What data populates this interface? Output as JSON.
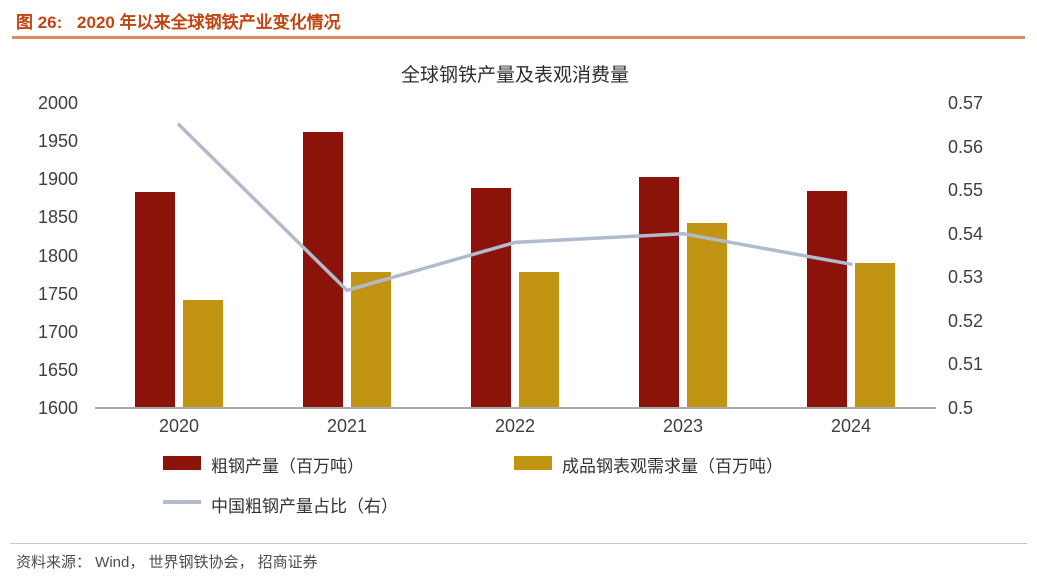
{
  "header": {
    "figure_label": "图 26:",
    "figure_title": "2020 年以来全球钢铁产业变化情况"
  },
  "chart_data": {
    "type": "bar",
    "subtype": "grouped bars with overlay line on secondary axis",
    "title": "全球钢铁产量及表观消费量",
    "categories": [
      "2020",
      "2021",
      "2022",
      "2023",
      "2024"
    ],
    "bar_series": [
      {
        "name": "粗钢产量（百万吨）",
        "color": "#8C1309",
        "axis": "left",
        "values": [
          1883,
          1962,
          1888,
          1903,
          1885
        ]
      },
      {
        "name": "成品钢表观需求量（百万吨）",
        "color": "#C29413",
        "axis": "left",
        "values": [
          1742,
          1778,
          1779,
          1843,
          1790
        ]
      }
    ],
    "line_series": [
      {
        "name": "中国粗钢产量占比（右）",
        "color": "#B0BBCE",
        "axis": "right",
        "values": [
          0.565,
          0.527,
          0.538,
          0.54,
          0.533
        ]
      }
    ],
    "left_axis": {
      "min": 1600,
      "max": 2000,
      "ticks": [
        1600,
        1650,
        1700,
        1750,
        1800,
        1850,
        1900,
        1950,
        2000
      ]
    },
    "right_axis": {
      "min": 0.5,
      "max": 0.57,
      "ticks": [
        0.5,
        0.51,
        0.52,
        0.53,
        0.54,
        0.55,
        0.56,
        0.57
      ],
      "tick_labels": [
        "0.5",
        "0.51",
        "0.52",
        "0.53",
        "0.54",
        "0.55",
        "0.56",
        "0.57"
      ]
    },
    "grid": false,
    "legend_position": "bottom"
  },
  "footer": {
    "source": "资料来源： Wind， 世界钢铁协会， 招商证券"
  },
  "colors": {
    "caption_text": "#C24511",
    "caption_rule": "#DB8E5C",
    "axis_text": "#3F3F3F",
    "axis_line": "#A9A9A9",
    "source_text": "#4D4D4D"
  }
}
